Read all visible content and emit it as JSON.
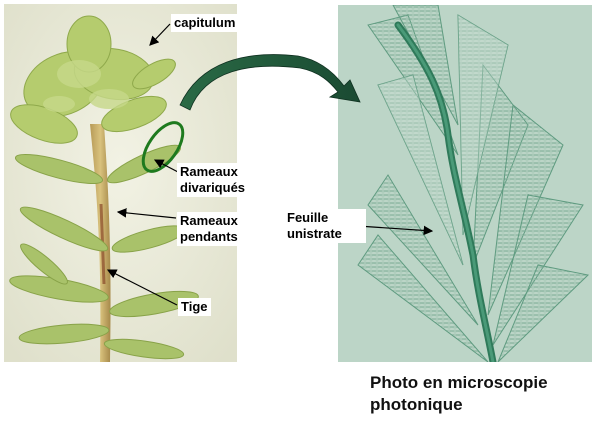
{
  "labels": {
    "capitulum": "capitulum",
    "rameaux_divariques": "Rameaux divariqués",
    "rameaux_pendants": "Rameaux pendants",
    "tige": "Tige",
    "feuille_unistrate": "Feuille unistrate"
  },
  "caption": "Photo en microscopie photonique",
  "colors": {
    "moss_green": "#a9c26a",
    "stem": "#c9a85a",
    "highlight_ellipse": "#1e7a1e",
    "arrow": "#1f5a3a",
    "leaf_cell_green": "#2f7a5a"
  }
}
